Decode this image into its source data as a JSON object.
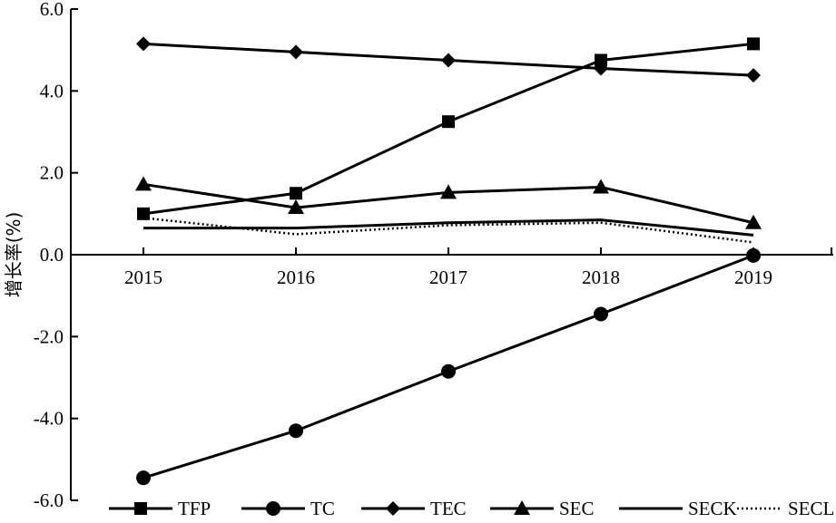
{
  "chart_data": {
    "type": "line",
    "title": "",
    "xlabel": "",
    "ylabel": "增长率(%)",
    "categories": [
      "2015",
      "2016",
      "2017",
      "2018",
      "2019"
    ],
    "ylim": [
      -6.0,
      6.0
    ],
    "yticks": [
      6.0,
      4.0,
      2.0,
      0.0,
      -2.0,
      -4.0,
      -6.0
    ],
    "ytick_labels": [
      "6.0",
      "4.0",
      "2.0",
      "0.0",
      "-2.0",
      "-4.0",
      "-6.0"
    ],
    "grid": false,
    "legend_position": "bottom",
    "series": [
      {
        "name": "TFP",
        "marker": "square",
        "line": "solid",
        "color": "#000000",
        "values": [
          1.0,
          1.5,
          3.25,
          4.75,
          5.15
        ]
      },
      {
        "name": "TC",
        "marker": "circle",
        "line": "solid",
        "color": "#000000",
        "values": [
          -5.45,
          -4.3,
          -2.85,
          -1.45,
          -0.02
        ]
      },
      {
        "name": "TEC",
        "marker": "diamond",
        "line": "solid",
        "color": "#000000",
        "values": [
          5.15,
          4.95,
          4.75,
          4.55,
          4.38
        ]
      },
      {
        "name": "SEC",
        "marker": "triangle",
        "line": "solid",
        "color": "#000000",
        "values": [
          1.72,
          1.15,
          1.52,
          1.65,
          0.78
        ]
      },
      {
        "name": "SECK",
        "marker": "none",
        "line": "solid",
        "color": "#000000",
        "values": [
          0.65,
          0.65,
          0.78,
          0.85,
          0.48
        ]
      },
      {
        "name": "SECL",
        "marker": "none",
        "line": "dotted",
        "color": "#000000",
        "values": [
          0.9,
          0.5,
          0.72,
          0.78,
          0.3
        ]
      }
    ]
  }
}
